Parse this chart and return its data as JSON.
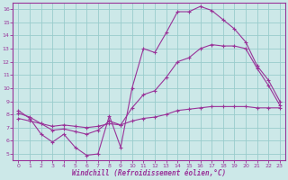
{
  "xlabel": "Windchill (Refroidissement éolien,°C)",
  "bg_color": "#cce8e8",
  "grid_color": "#99cccc",
  "line_color": "#993399",
  "axis_color": "#993399",
  "text_color": "#993399",
  "xlim": [
    -0.5,
    23.5
  ],
  "ylim": [
    4.5,
    16.5
  ],
  "xticks": [
    0,
    1,
    2,
    3,
    4,
    5,
    6,
    7,
    8,
    9,
    10,
    11,
    12,
    13,
    14,
    15,
    16,
    17,
    18,
    19,
    20,
    21,
    22,
    23
  ],
  "yticks": [
    5,
    6,
    7,
    8,
    9,
    10,
    11,
    12,
    13,
    14,
    15,
    16
  ],
  "line_top_x": [
    0,
    1,
    2,
    3,
    4,
    5,
    6,
    7,
    8,
    9,
    10,
    11,
    12,
    13,
    14,
    15,
    16,
    17,
    18,
    19,
    20,
    21,
    22,
    23
  ],
  "line_top_y": [
    8.3,
    7.7,
    6.5,
    5.9,
    6.5,
    5.5,
    4.9,
    5.0,
    7.9,
    5.5,
    10.0,
    13.0,
    12.7,
    14.2,
    15.8,
    15.8,
    16.2,
    15.9,
    15.2,
    14.5,
    13.5,
    11.7,
    10.6,
    9.0
  ],
  "line_mid_x": [
    0,
    1,
    2,
    3,
    4,
    5,
    6,
    7,
    8,
    9,
    10,
    11,
    12,
    13,
    14,
    15,
    16,
    17,
    18,
    19,
    20,
    21,
    22,
    23
  ],
  "line_mid_y": [
    8.1,
    7.8,
    7.3,
    6.8,
    6.9,
    6.7,
    6.5,
    6.8,
    7.5,
    7.2,
    8.5,
    9.5,
    9.8,
    10.8,
    12.0,
    12.3,
    13.0,
    13.3,
    13.2,
    13.2,
    13.0,
    11.5,
    10.2,
    8.7
  ],
  "line_bot_x": [
    0,
    1,
    2,
    3,
    4,
    5,
    6,
    7,
    8,
    9,
    10,
    11,
    12,
    13,
    14,
    15,
    16,
    17,
    18,
    19,
    20,
    21,
    22,
    23
  ],
  "line_bot_y": [
    7.7,
    7.5,
    7.3,
    7.1,
    7.2,
    7.1,
    7.0,
    7.1,
    7.3,
    7.2,
    7.5,
    7.7,
    7.8,
    8.0,
    8.3,
    8.4,
    8.5,
    8.6,
    8.6,
    8.6,
    8.6,
    8.5,
    8.5,
    8.5
  ]
}
